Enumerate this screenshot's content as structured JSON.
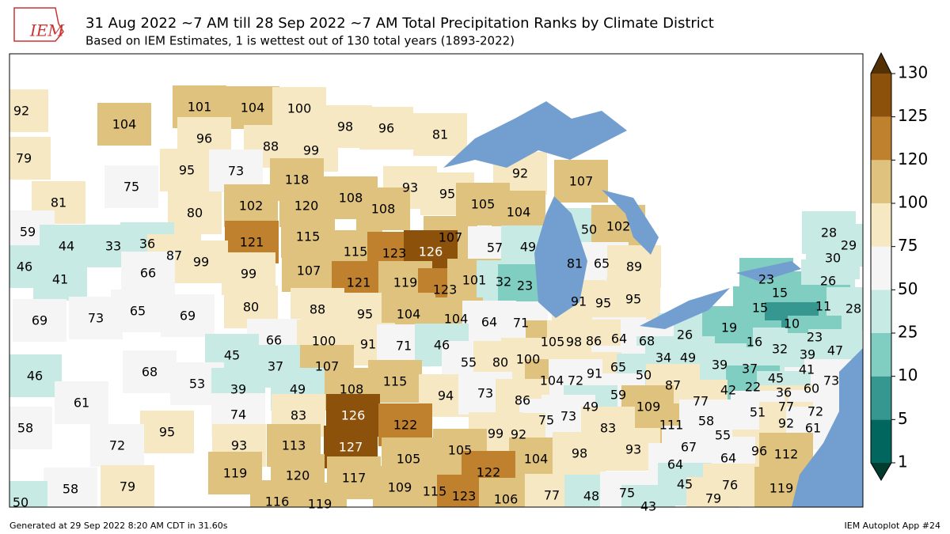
{
  "header": {
    "logo": "IEM",
    "title": "31 Aug 2022 ~7 AM till 28 Sep 2022 ~7 AM Total Precipitation Ranks by Climate District",
    "subtitle": "Based on IEM Estimates, 1 is wettest out of 130 total years (1893-2022)"
  },
  "map": {
    "ranks": [
      92,
      104,
      101,
      104,
      100,
      98,
      96,
      81,
      79,
      96,
      88,
      99,
      95,
      73,
      92,
      107,
      75,
      118,
      93,
      81,
      95,
      105,
      104,
      108,
      108,
      80,
      102,
      120,
      50,
      102,
      59,
      44,
      33,
      36,
      121,
      115,
      107,
      57,
      49,
      87,
      99,
      115,
      123,
      126,
      81,
      65,
      89,
      46,
      41,
      66,
      99,
      107,
      121,
      119,
      123,
      101,
      32,
      23,
      23,
      15,
      26,
      28,
      29,
      30,
      69,
      73,
      65,
      69,
      80,
      88,
      95,
      104,
      104,
      64,
      71,
      91,
      95,
      95,
      15,
      11,
      28,
      10,
      26,
      68,
      64,
      19,
      16,
      32,
      23,
      39,
      47,
      66,
      100,
      91,
      71,
      46,
      105,
      98,
      86,
      45,
      37,
      107,
      55,
      80,
      100,
      34,
      49,
      65,
      91,
      50,
      39,
      37,
      41,
      45,
      46,
      68,
      53,
      39,
      49,
      108,
      115,
      104,
      72,
      87,
      73,
      60,
      42,
      22,
      36,
      61,
      74,
      83,
      126,
      94,
      73,
      86,
      59,
      49,
      109,
      77,
      75,
      73,
      77,
      72,
      51,
      58,
      95,
      122,
      99,
      92,
      83,
      111,
      58,
      92,
      61,
      55,
      72,
      93,
      113,
      127,
      105,
      93,
      67,
      96,
      112,
      64,
      105,
      104,
      98,
      64,
      119,
      79,
      58,
      120,
      117,
      122,
      45,
      76,
      119,
      109,
      115,
      123,
      106,
      77,
      48,
      75,
      79,
      50,
      116,
      119,
      43
    ],
    "colorbar": {
      "ticks": [
        1,
        5,
        10,
        25,
        50,
        75,
        100,
        120,
        125,
        130
      ],
      "colors": [
        "#01665e",
        "#35978f",
        "#80cdc1",
        "#c7eae5",
        "#f5f5f5",
        "#f6e8c3",
        "#dfc27d",
        "#bf812d",
        "#8c510a"
      ],
      "under_color": "#003c30",
      "over_color": "#543005"
    }
  },
  "footer": {
    "generated": "Generated at 29 Sep 2022 8:20 AM CDT in 31.60s",
    "app": "IEM Autoplot App #24"
  }
}
